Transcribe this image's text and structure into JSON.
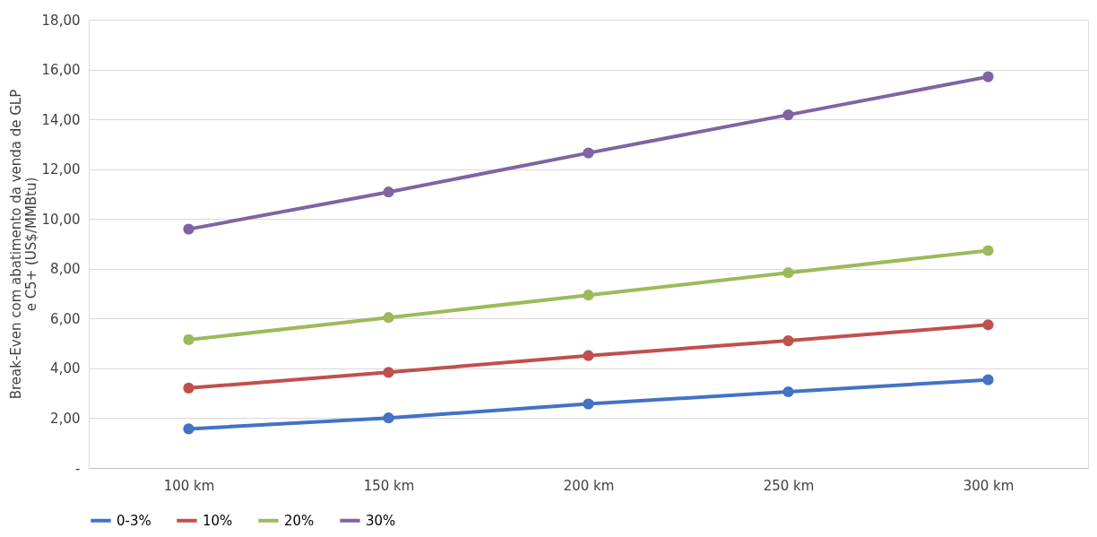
{
  "chart_data": {
    "type": "line",
    "ylabel": "Break-Even com abatimento da venda de GLP\ne C5+ (US$/MMBtu)",
    "categories": [
      "100 km",
      "150 km",
      "200 km",
      "250 km",
      "300 km"
    ],
    "series": [
      {
        "name": "0-3%",
        "color": "#4472c4",
        "values": [
          1.57,
          2.01,
          2.57,
          3.06,
          3.54
        ]
      },
      {
        "name": "10%",
        "color": "#c0504d",
        "values": [
          3.21,
          3.84,
          4.51,
          5.11,
          5.75
        ]
      },
      {
        "name": "20%",
        "color": "#9bbb59",
        "values": [
          5.15,
          6.04,
          6.94,
          7.84,
          8.73
        ]
      },
      {
        "name": "30%",
        "color": "#8064a2",
        "values": [
          9.59,
          11.08,
          12.65,
          14.18,
          15.71
        ]
      }
    ],
    "ylim": [
      0,
      18
    ],
    "yticks": [
      {
        "value": 0,
        "label": "-"
      },
      {
        "value": 2,
        "label": "2,00"
      },
      {
        "value": 4,
        "label": "4,00"
      },
      {
        "value": 6,
        "label": "6,00"
      },
      {
        "value": 8,
        "label": "8,00"
      },
      {
        "value": 10,
        "label": "10,00"
      },
      {
        "value": 12,
        "label": "12,00"
      },
      {
        "value": 14,
        "label": "14,00"
      },
      {
        "value": 16,
        "label": "16,00"
      },
      {
        "value": 18,
        "label": "18,00"
      }
    ],
    "grid": "y",
    "legend": "bottom",
    "marker": "circle",
    "line_style": "solid"
  }
}
